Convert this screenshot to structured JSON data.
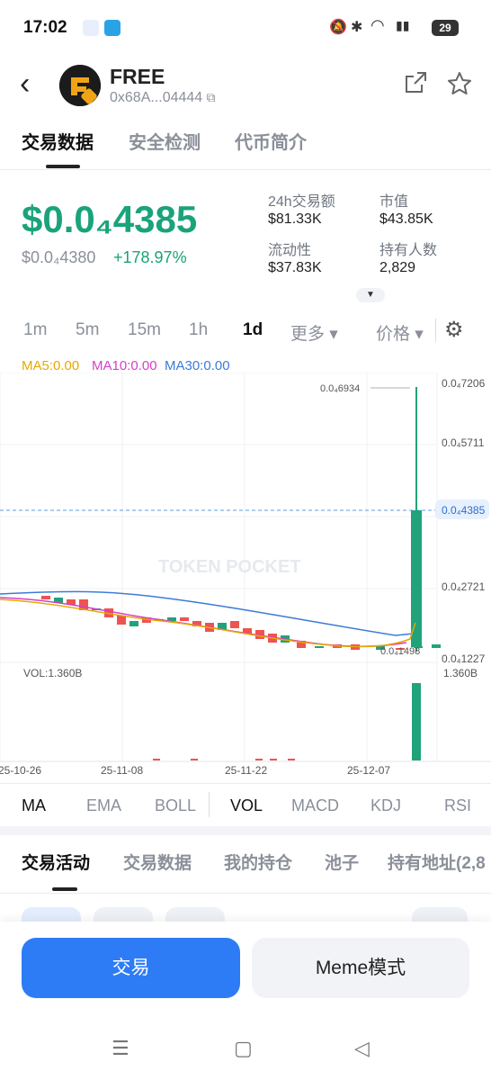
{
  "status_bar": {
    "time": "17:02",
    "battery": "29"
  },
  "header": {
    "name": "FREE",
    "address": "0x68A...04444",
    "back_icon": "back-chevron-icon",
    "share_icon": "share-icon",
    "star_icon": "star-icon"
  },
  "tabs": [
    {
      "label": "交易数据",
      "active": true
    },
    {
      "label": "安全检测",
      "active": false
    },
    {
      "label": "代币简介",
      "active": false
    }
  ],
  "price": {
    "main": "$0.0₄4385",
    "sub": "$0.0₄4380",
    "change": "+178.97%"
  },
  "stats": [
    {
      "label": "24h交易额",
      "value": "$81.33K"
    },
    {
      "label": "市值",
      "value": "$43.85K"
    },
    {
      "label": "流动性",
      "value": "$37.83K"
    },
    {
      "label": "持有人数",
      "value": "2,829"
    }
  ],
  "timeframes": [
    {
      "label": "1m",
      "active": false
    },
    {
      "label": "5m",
      "active": false
    },
    {
      "label": "15m",
      "active": false
    },
    {
      "label": "1h",
      "active": false
    },
    {
      "label": "1d",
      "active": true
    }
  ],
  "more_label": "更多 ▾",
  "price_dd_label": "价格 ▾",
  "ma": {
    "ma5": "MA5:0.00",
    "ma10": "MA10:0.00",
    "ma30": "MA30:0.00"
  },
  "chart_data": {
    "type": "candlestick",
    "watermark": "TOKEN POCKET",
    "y_axis_labels": [
      "0.0₄7206",
      "0.0₄5711",
      "0.0₄4385",
      "0.0₄2721",
      "0.0₄1227"
    ],
    "annotations": {
      "high": "0.0₄6934",
      "low": "0.0₄1498"
    },
    "x_labels": [
      "25-10-26",
      "25-11-08",
      "25-11-22",
      "25-12-07"
    ],
    "vol_label": "VOL:1.360B",
    "vol_axis": "1.360B",
    "colors": {
      "up": "#20a37a",
      "down": "#ef5350",
      "ma5": "#e6a800",
      "ma10": "#d63fc6",
      "ma30": "#3d7bd6"
    }
  },
  "indicators": [
    {
      "label": "MA",
      "active": true
    },
    {
      "label": "EMA",
      "active": false
    },
    {
      "label": "BOLL",
      "active": false
    },
    {
      "label": "VOL",
      "active": true
    },
    {
      "label": "MACD",
      "active": false
    },
    {
      "label": "KDJ",
      "active": false
    },
    {
      "label": "RSI",
      "active": false
    }
  ],
  "activity_tabs": [
    {
      "label": "交易活动",
      "active": true
    },
    {
      "label": "交易数据",
      "active": false
    },
    {
      "label": "我的持仓",
      "active": false
    },
    {
      "label": "池子",
      "active": false
    },
    {
      "label": "持有地址(2,8",
      "active": false
    }
  ],
  "buttons": {
    "trade": "交易",
    "meme": "Meme模式"
  }
}
